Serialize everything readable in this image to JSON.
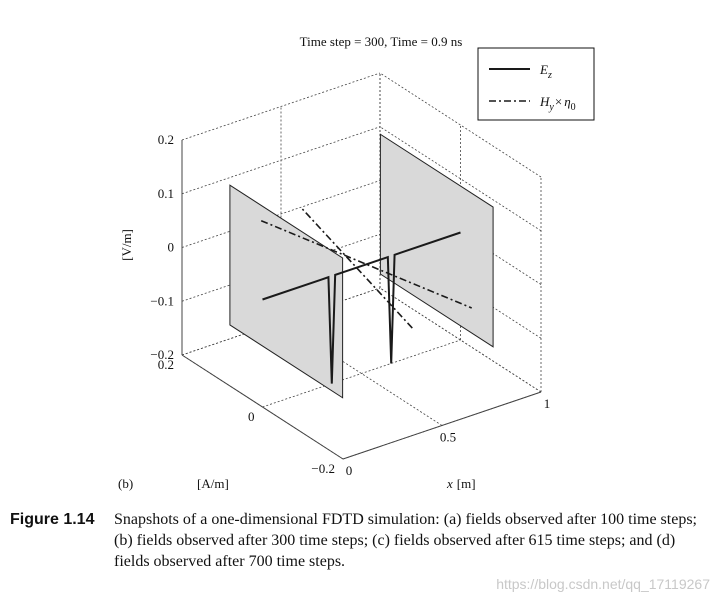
{
  "figure": {
    "panel_label": "(b)",
    "title": "Time step = 300, Time = 0.9 ns",
    "z_axis_label": "[V/m]",
    "y_axis_label": "[A/m]",
    "x_axis_label_var": "x",
    "x_axis_label_unit": "[m]",
    "legend": {
      "ez_label": "E",
      "ez_sub": "z",
      "hy_label": "H",
      "hy_sub": "y",
      "hy_times": "×",
      "hy_eta": "η",
      "hy_eta_sub": "0"
    }
  },
  "chart_data": {
    "type": "line",
    "title": "Time step = 300, Time = 0.9 ns",
    "xlabel": "x [m]",
    "ylabel": "[A/m]",
    "zlabel": "[V/m]",
    "x_ticks": [
      "0",
      "0.5",
      "1"
    ],
    "y_ticks": [
      "−0.2",
      "0",
      "0.2"
    ],
    "z_ticks": [
      "−0.2",
      "−0.1",
      "0",
      "0.1",
      "0.2"
    ],
    "xlim": [
      0,
      1
    ],
    "ylim": [
      -0.2,
      0.2
    ],
    "zlim": [
      -0.2,
      0.2
    ],
    "grid": true,
    "legend_position": "top-right",
    "series": [
      {
        "name": "Ez",
        "style": "solid",
        "x": [
          0.0,
          0.3,
          0.333,
          0.35,
          0.367,
          0.4,
          0.6,
          0.633,
          0.65,
          0.667,
          0.7,
          1.0
        ],
        "y": [
          0,
          0,
          0,
          0,
          0,
          0,
          0,
          0,
          0,
          0,
          0,
          0
        ],
        "z": [
          0,
          0,
          0,
          -0.2,
          0,
          0,
          0,
          0,
          -0.2,
          0,
          0,
          0
        ]
      },
      {
        "name": "Hy × η0",
        "style": "dashdot",
        "x": [
          0.35,
          0.6
        ],
        "y": [
          -0.2,
          0.2
        ],
        "z": [
          0,
          0
        ]
      },
      {
        "name": "Hy × η0",
        "style": "dashdot",
        "x": [
          0.4,
          0.65
        ],
        "y": [
          0.2,
          -0.2
        ],
        "z": [
          0,
          0
        ]
      }
    ],
    "boundary_planes_x": [
      0,
      1
    ]
  },
  "caption": {
    "label": "Figure 1.14",
    "text": "Snapshots of a one-dimensional FDTD simulation: (a) fields observed after 100 time steps; (b) fields observed after 300 time steps; (c) fields observed after 615 time steps; and (d) fields observed after 700 time steps."
  },
  "watermark": "https://blog.csdn.net/qq_17119267",
  "colors": {
    "line": "#1a1a1a",
    "plane_fill": "#d9d9d9",
    "grid": "#444444"
  }
}
